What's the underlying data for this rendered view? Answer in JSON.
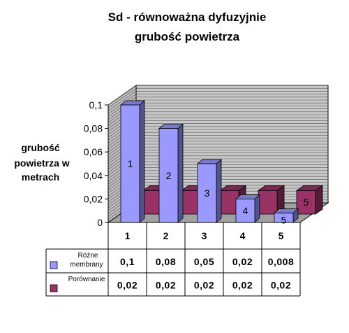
{
  "chart_data": {
    "type": "bar",
    "title_line1": "Sd - równoważna dyfuzyjnie",
    "title_line2": "grubość powietrza",
    "ylabel_lines": [
      "grubość",
      "powietrza  w",
      "metrach"
    ],
    "categories": [
      "1",
      "2",
      "3",
      "4",
      "5"
    ],
    "y_ticks": [
      "0",
      "0,02",
      "0,04",
      "0,06",
      "0,08",
      "0,1"
    ],
    "ylim": [
      0,
      0.1
    ],
    "grid": true,
    "series": [
      {
        "name_lines": [
          "Różne",
          "membrany"
        ],
        "color": "#9999ff",
        "values": [
          0.1,
          0.08,
          0.05,
          0.02,
          0.008
        ],
        "display_values": [
          "0,1",
          "0,08",
          "0,05",
          "0,02",
          "0,008"
        ],
        "bar_labels": [
          "1",
          "2",
          "3",
          "4",
          "5"
        ]
      },
      {
        "name_lines": [
          "Porównanie"
        ],
        "color": "#993366",
        "values": [
          0.02,
          0.02,
          0.02,
          0.02,
          0.02
        ],
        "display_values": [
          "0,02",
          "0,02",
          "0,02",
          "0,02",
          "0,02"
        ],
        "bar_labels": [
          "",
          "",
          "",
          "",
          "5"
        ]
      }
    ]
  }
}
